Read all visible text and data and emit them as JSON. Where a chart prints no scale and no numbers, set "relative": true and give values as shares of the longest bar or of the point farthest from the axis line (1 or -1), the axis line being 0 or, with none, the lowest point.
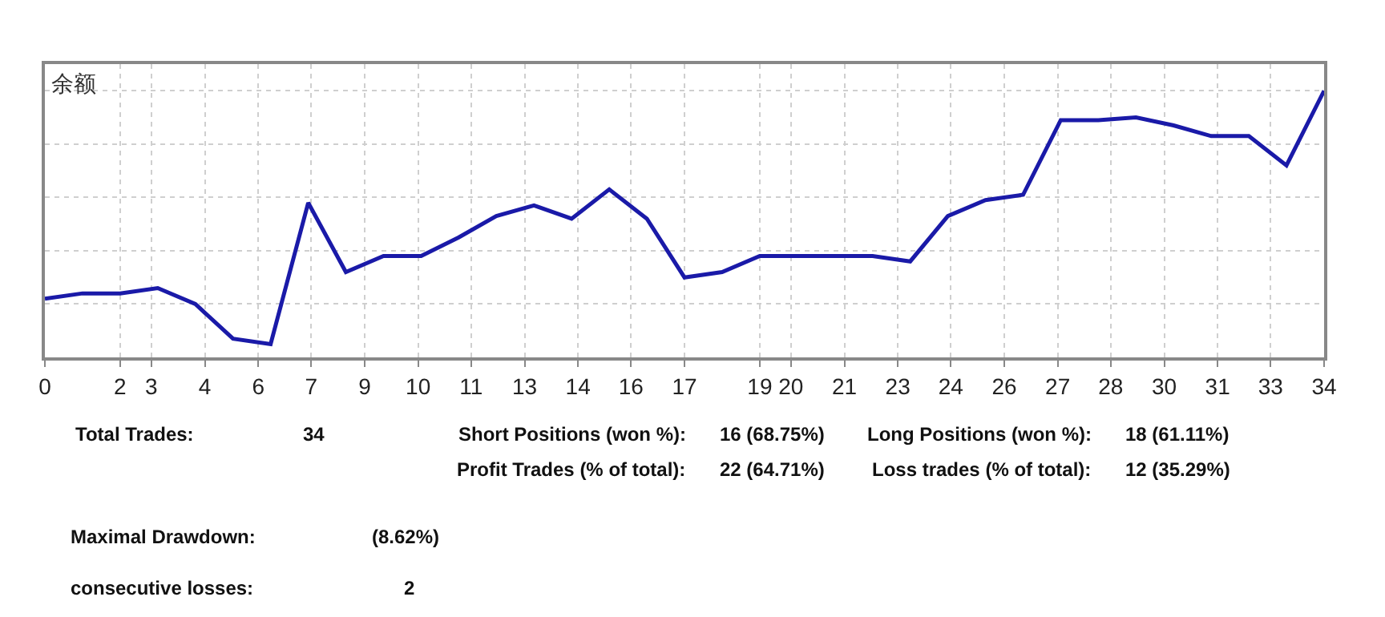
{
  "chart_data": {
    "type": "line",
    "title": "余额",
    "relative": true,
    "grid": true,
    "line_style": "solid",
    "marker": "none",
    "x": [
      0,
      1,
      2,
      3,
      4,
      5,
      6,
      7,
      8,
      9,
      10,
      11,
      12,
      13,
      14,
      15,
      16,
      17,
      18,
      19,
      20,
      21,
      22,
      23,
      24,
      25,
      26,
      27,
      28,
      29,
      30,
      31,
      32,
      33,
      34
    ],
    "xlim": [
      0,
      34
    ],
    "xticks": [
      0,
      2,
      {
        "value": 2.83,
        "label": "3"
      },
      {
        "value": 4.25,
        "label": "4"
      },
      {
        "value": 5.67,
        "label": "6"
      },
      {
        "value": 7.08,
        "label": "7"
      },
      {
        "value": 8.5,
        "label": "9"
      },
      {
        "value": 9.92,
        "label": "10"
      },
      {
        "value": 11.33,
        "label": "11"
      },
      {
        "value": 12.75,
        "label": "13"
      },
      {
        "value": 14.17,
        "label": "14"
      },
      {
        "value": 15.58,
        "label": "16"
      },
      17,
      19,
      {
        "value": 19.83,
        "label": "20"
      },
      {
        "value": 21.25,
        "label": "21"
      },
      {
        "value": 22.67,
        "label": "23"
      },
      {
        "value": 24.08,
        "label": "24"
      },
      {
        "value": 25.5,
        "label": "26"
      },
      {
        "value": 26.92,
        "label": "27"
      },
      {
        "value": 28.33,
        "label": "28"
      },
      {
        "value": 29.75,
        "label": "30"
      },
      {
        "value": 31.17,
        "label": "31"
      },
      {
        "value": 32.58,
        "label": "33"
      },
      34
    ],
    "series": [
      {
        "color": "#1a1aa8",
        "values": [
          0.22,
          0.24,
          0.24,
          0.26,
          0.2,
          0.07,
          0.05,
          0.58,
          0.32,
          0.38,
          0.38,
          0.45,
          0.53,
          0.57,
          0.52,
          0.63,
          0.52,
          0.3,
          0.32,
          0.38,
          0.38,
          0.38,
          0.38,
          0.36,
          0.53,
          0.59,
          0.61,
          0.89,
          0.89,
          0.9,
          0.87,
          0.83,
          0.83,
          0.72,
          1.0
        ]
      }
    ],
    "annotations": [
      "Total Trades:",
      "34",
      "Short Positions (won %):",
      "16 (68.75%)",
      "Long Positions (won %):",
      "18 (61.11%)",
      "Profit Trades (% of total):",
      "22 (64.71%)",
      "Loss trades (% of total):",
      "12 (35.29%)",
      "Maximal Drawdown:",
      "(8.62%)",
      "consecutive losses:",
      "2"
    ]
  }
}
